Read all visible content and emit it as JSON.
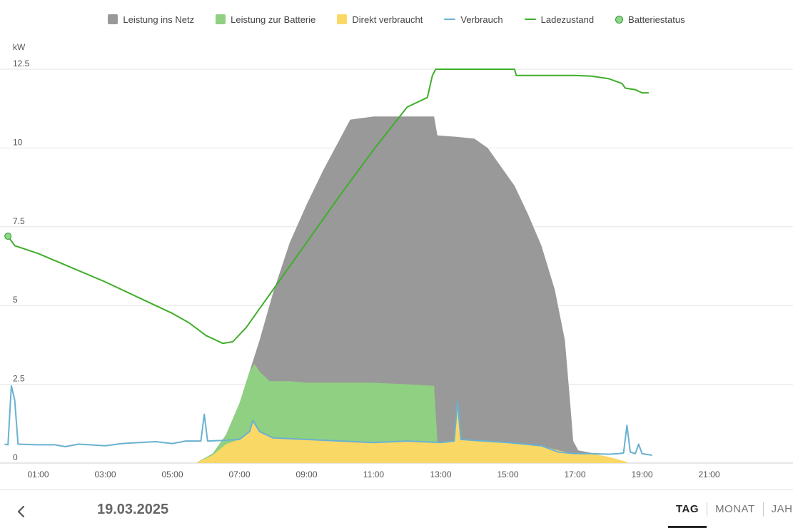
{
  "legend": {
    "grid": "Leistung ins Netz",
    "battery_power": "Leistung zur Batterie",
    "direct": "Direkt verbraucht",
    "consumption": "Verbrauch",
    "soc": "Ladezustand",
    "battery_status": "Batteriestatus"
  },
  "colors": {
    "grid": "#999999",
    "battery_power": "#90d082",
    "direct": "#fad866",
    "consumption": "#69b1d1",
    "soc": "#3fae2a",
    "gridline": "#e6e6e6",
    "axis_text": "#555555"
  },
  "footer": {
    "date": "19.03.2025",
    "tabs": [
      "TAG",
      "MONAT",
      "JAHR"
    ],
    "active_tab": "TAG",
    "prev_icon": "chevron-left-icon"
  },
  "chart_data": {
    "type": "area",
    "ylabel": "kW",
    "ylim": [
      0,
      12.5
    ],
    "yticks": [
      "0",
      "2.5",
      "5",
      "7.5",
      "10",
      "12.5"
    ],
    "yticks_values": [
      0,
      2.5,
      5,
      7.5,
      10,
      12.5
    ],
    "xlim": [
      0,
      24
    ],
    "xticks": [
      "01:00",
      "03:00",
      "05:00",
      "07:00",
      "09:00",
      "11:00",
      "13:00",
      "15:00",
      "17:00",
      "19:00",
      "21:00"
    ],
    "xticks_values": [
      1,
      3,
      5,
      7,
      9,
      11,
      13,
      15,
      17,
      19,
      21
    ],
    "legend_position": "top",
    "series": [
      {
        "name": "Leistung ins Netz",
        "key": "total",
        "points": [
          [
            5.7,
            0
          ],
          [
            6.2,
            0.3
          ],
          [
            6.6,
            0.9
          ],
          [
            7.0,
            1.9
          ],
          [
            7.3,
            2.9
          ],
          [
            7.6,
            3.9
          ],
          [
            8.0,
            5.4
          ],
          [
            8.5,
            7.0
          ],
          [
            9.0,
            8.2
          ],
          [
            9.5,
            9.3
          ],
          [
            10.0,
            10.3
          ],
          [
            10.3,
            10.9
          ],
          [
            11.0,
            11.0
          ],
          [
            12.0,
            11.0
          ],
          [
            12.8,
            11.0
          ],
          [
            12.9,
            10.4
          ],
          [
            13.5,
            10.35
          ],
          [
            14.0,
            10.3
          ],
          [
            14.4,
            10.0
          ],
          [
            14.8,
            9.4
          ],
          [
            15.2,
            8.8
          ],
          [
            15.6,
            7.9
          ],
          [
            16.0,
            6.9
          ],
          [
            16.4,
            5.5
          ],
          [
            16.7,
            3.9
          ],
          [
            16.85,
            2.0
          ],
          [
            16.95,
            0.7
          ],
          [
            17.1,
            0.4
          ],
          [
            17.6,
            0.3
          ],
          [
            17.9,
            0.15
          ],
          [
            18.2,
            0.05
          ],
          [
            18.5,
            0
          ]
        ]
      },
      {
        "name": "Leistung zur Batterie",
        "key": "battery",
        "points": [
          [
            5.7,
            0
          ],
          [
            6.2,
            0.3
          ],
          [
            6.6,
            0.9
          ],
          [
            7.0,
            1.9
          ],
          [
            7.3,
            2.9
          ],
          [
            7.45,
            3.15
          ],
          [
            7.6,
            2.9
          ],
          [
            7.9,
            2.6
          ],
          [
            8.5,
            2.6
          ],
          [
            9.0,
            2.55
          ],
          [
            10.0,
            2.55
          ],
          [
            11.0,
            2.55
          ],
          [
            12.0,
            2.5
          ],
          [
            12.8,
            2.45
          ],
          [
            12.9,
            0.7
          ],
          [
            13.0,
            0.65
          ]
        ]
      },
      {
        "name": "Direkt verbraucht",
        "key": "direct",
        "points": [
          [
            5.7,
            0
          ],
          [
            6.2,
            0.25
          ],
          [
            6.6,
            0.6
          ],
          [
            7.0,
            0.75
          ],
          [
            7.3,
            1.0
          ],
          [
            7.4,
            1.35
          ],
          [
            7.6,
            1.0
          ],
          [
            8.0,
            0.8
          ],
          [
            9.0,
            0.75
          ],
          [
            10.0,
            0.7
          ],
          [
            11.0,
            0.65
          ],
          [
            12.0,
            0.7
          ],
          [
            13.0,
            0.65
          ],
          [
            13.4,
            0.7
          ],
          [
            13.5,
            1.85
          ],
          [
            13.6,
            0.75
          ],
          [
            14.0,
            0.72
          ],
          [
            15.0,
            0.65
          ],
          [
            16.0,
            0.55
          ],
          [
            16.5,
            0.4
          ],
          [
            17.0,
            0.3
          ],
          [
            17.5,
            0.3
          ],
          [
            18.0,
            0.2
          ],
          [
            18.5,
            0.05
          ],
          [
            18.6,
            0
          ]
        ]
      },
      {
        "name": "Verbrauch",
        "key": "consumption",
        "points": [
          [
            0.0,
            0.6
          ],
          [
            0.1,
            0.58
          ],
          [
            0.2,
            2.45
          ],
          [
            0.3,
            2.0
          ],
          [
            0.4,
            0.6
          ],
          [
            1.0,
            0.58
          ],
          [
            1.5,
            0.58
          ],
          [
            1.8,
            0.52
          ],
          [
            2.2,
            0.6
          ],
          [
            3.0,
            0.55
          ],
          [
            3.5,
            0.62
          ],
          [
            4.0,
            0.65
          ],
          [
            4.5,
            0.68
          ],
          [
            5.0,
            0.62
          ],
          [
            5.4,
            0.7
          ],
          [
            5.85,
            0.7
          ],
          [
            5.95,
            1.55
          ],
          [
            6.05,
            0.7
          ],
          [
            6.5,
            0.72
          ],
          [
            7.0,
            0.75
          ],
          [
            7.3,
            1.0
          ],
          [
            7.4,
            1.35
          ],
          [
            7.6,
            1.0
          ],
          [
            8.0,
            0.8
          ],
          [
            9.0,
            0.75
          ],
          [
            10.0,
            0.7
          ],
          [
            11.0,
            0.65
          ],
          [
            12.0,
            0.7
          ],
          [
            13.0,
            0.65
          ],
          [
            13.4,
            0.7
          ],
          [
            13.5,
            1.95
          ],
          [
            13.6,
            0.75
          ],
          [
            14.0,
            0.72
          ],
          [
            15.0,
            0.65
          ],
          [
            16.0,
            0.55
          ],
          [
            16.5,
            0.35
          ],
          [
            17.0,
            0.3
          ],
          [
            17.5,
            0.3
          ],
          [
            18.0,
            0.28
          ],
          [
            18.3,
            0.3
          ],
          [
            18.45,
            0.32
          ],
          [
            18.55,
            1.2
          ],
          [
            18.65,
            0.35
          ],
          [
            18.8,
            0.3
          ],
          [
            18.9,
            0.6
          ],
          [
            19.0,
            0.3
          ],
          [
            19.3,
            0.25
          ]
        ]
      },
      {
        "name": "Ladezustand",
        "key": "soc",
        "points": [
          [
            0.1,
            7.2
          ],
          [
            0.3,
            6.9
          ],
          [
            1.0,
            6.65
          ],
          [
            2.0,
            6.2
          ],
          [
            3.0,
            5.75
          ],
          [
            4.0,
            5.25
          ],
          [
            5.0,
            4.75
          ],
          [
            5.5,
            4.45
          ],
          [
            6.0,
            4.05
          ],
          [
            6.5,
            3.8
          ],
          [
            6.8,
            3.85
          ],
          [
            7.2,
            4.3
          ],
          [
            8.0,
            5.5
          ],
          [
            9.0,
            7.0
          ],
          [
            10.0,
            8.5
          ],
          [
            11.0,
            9.95
          ],
          [
            12.0,
            11.3
          ],
          [
            12.6,
            11.6
          ],
          [
            12.75,
            12.3
          ],
          [
            12.85,
            12.5
          ],
          [
            15.2,
            12.5
          ],
          [
            15.25,
            12.3
          ],
          [
            16.0,
            12.3
          ],
          [
            17.0,
            12.3
          ],
          [
            17.5,
            12.28
          ],
          [
            18.0,
            12.2
          ],
          [
            18.4,
            12.05
          ],
          [
            18.5,
            11.9
          ],
          [
            18.8,
            11.85
          ],
          [
            19.0,
            11.75
          ],
          [
            19.2,
            11.75
          ]
        ]
      }
    ],
    "battery_status_point": [
      0.1,
      7.2
    ]
  }
}
